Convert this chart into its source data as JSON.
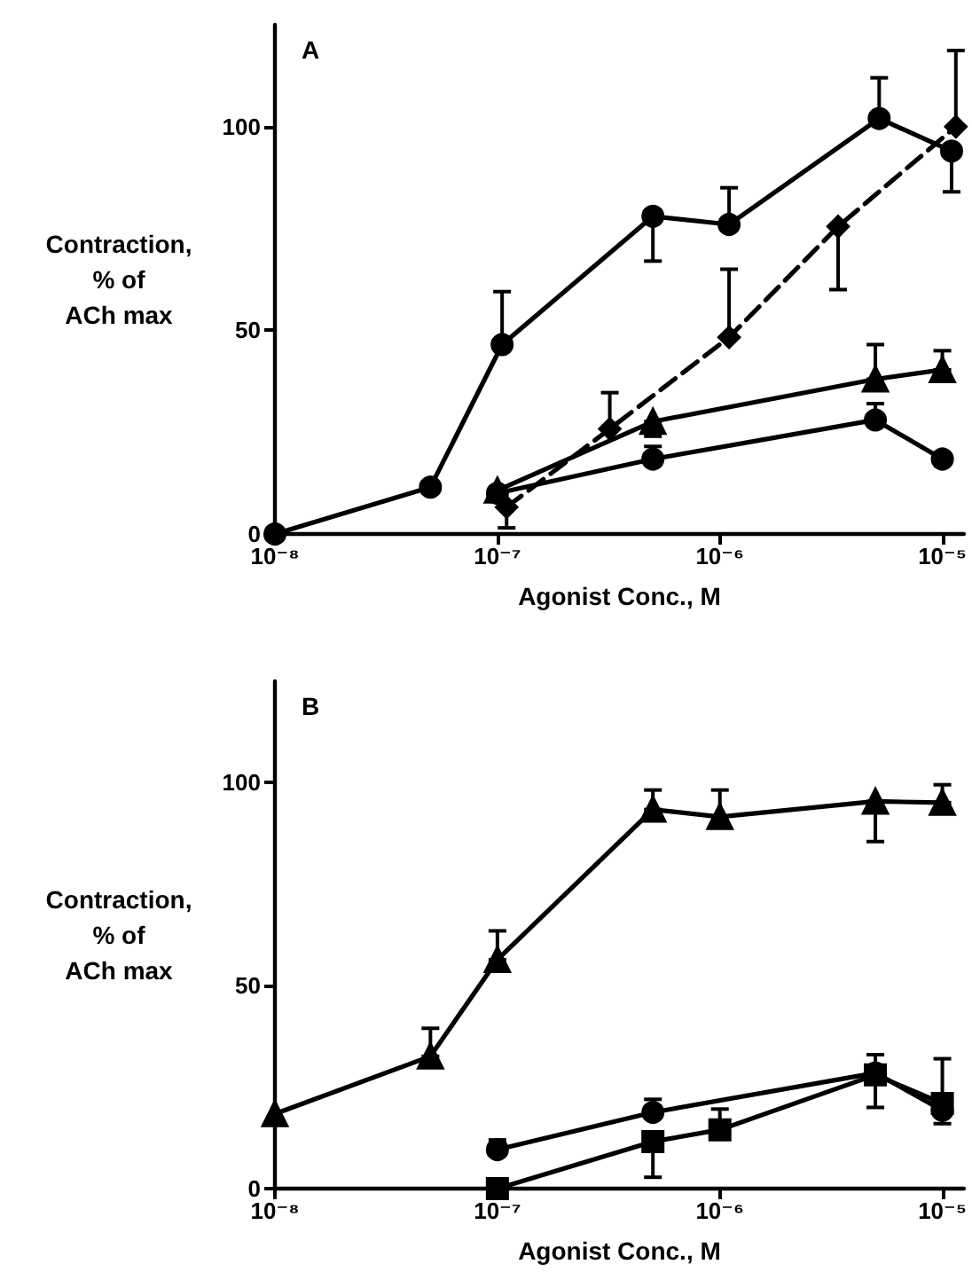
{
  "chart_data": [
    {
      "type": "line",
      "title": "A",
      "xlabel": "Agonist Conc., M",
      "ylabel": "Contraction,\n% of\nACh max",
      "log": "x",
      "xlim": [
        1e-08,
        1.25e-05
      ],
      "xticks": [
        {
          "value": 1e-08,
          "label": "10⁻⁸"
        },
        {
          "value": 1e-07,
          "label": "10⁻⁷"
        },
        {
          "value": 1e-06,
          "label": "10⁻⁶"
        },
        {
          "value": 1e-05,
          "label": "10⁻⁵"
        }
      ],
      "ylim": [
        0,
        125
      ],
      "yticks": [
        0,
        50,
        100
      ],
      "series": [
        {
          "color": "#000000",
          "marker": "circle",
          "line_style": "solid",
          "x": [
            1e-08,
            5e-08,
            1.05e-07,
            5e-07,
            1.1e-06,
            5.2e-06,
            1.1e-05
          ],
          "values": [
            0,
            11.5,
            46.5,
            78,
            76,
            102,
            94
          ],
          "errors": [
            null,
            null,
            [
              46.5,
              59.5
            ],
            [
              67,
              78
            ],
            [
              76,
              85
            ],
            [
              102,
              112
            ],
            [
              84,
              94
            ]
          ]
        },
        {
          "color": "#000000",
          "marker": "diamond",
          "line_style": "dashed",
          "x": [
            1.1e-07,
            3.2e-07,
            1.1e-06,
            3.4e-06,
            1.15e-05
          ],
          "values": [
            6.6,
            25.8,
            48.3,
            75.5,
            100
          ],
          "errors": [
            [
              1.5,
              6.6
            ],
            [
              25.8,
              34.7
            ],
            [
              48.3,
              65
            ],
            [
              60,
              75.5
            ],
            [
              100,
              118.7
            ]
          ]
        },
        {
          "color": "#000000",
          "marker": "triangle",
          "line_style": "solid",
          "x": [
            1e-07,
            5e-07,
            5e-06,
            1e-05
          ],
          "values": [
            10.7,
            27.6,
            38,
            40.3
          ],
          "errors": [
            null,
            [
              24,
              27.6
            ],
            [
              38,
              46.5
            ],
            [
              40.3,
              45
            ]
          ]
        },
        {
          "color": "#000000",
          "marker": "circle",
          "line_style": "solid",
          "x": [
            1e-07,
            5e-07,
            5e-06,
            1e-05
          ],
          "values": [
            10,
            18.4,
            28,
            18.4
          ],
          "errors": [
            null,
            [
              18.4,
              21.5
            ],
            [
              28,
              32
            ],
            null
          ]
        }
      ]
    },
    {
      "type": "line",
      "title": "B",
      "xlabel": "Agonist Conc., M",
      "ylabel": "Contraction,\n% of\nACh max",
      "log": "x",
      "xlim": [
        1e-08,
        1.25e-05
      ],
      "xticks": [
        {
          "value": 1e-08,
          "label": "10⁻⁸"
        },
        {
          "value": 1e-07,
          "label": "10⁻⁷"
        },
        {
          "value": 1e-06,
          "label": "10⁻⁶"
        },
        {
          "value": 1e-05,
          "label": "10⁻⁵"
        }
      ],
      "ylim": [
        0,
        125
      ],
      "yticks": [
        0,
        50,
        100
      ],
      "series": [
        {
          "color": "#000000",
          "marker": "triangle",
          "line_style": "solid",
          "x": [
            1e-08,
            5e-08,
            1e-07,
            5e-07,
            1e-06,
            5e-06,
            1e-05
          ],
          "values": [
            18.4,
            32.6,
            56.4,
            93.4,
            91.6,
            95.4,
            95.1
          ],
          "errors": [
            null,
            [
              32.6,
              39.5
            ],
            [
              56.4,
              63.5
            ],
            [
              93.4,
              98.2
            ],
            [
              91.6,
              98.2
            ],
            [
              85.5,
              95.4
            ],
            [
              95.1,
              99.5
            ]
          ]
        },
        {
          "color": "#000000",
          "marker": "circle",
          "line_style": "solid",
          "x": [
            1e-07,
            5e-07,
            5e-06,
            1e-05
          ],
          "values": [
            9.6,
            18.8,
            28.5,
            19.3
          ],
          "errors": [
            [
              9.6,
              12
            ],
            [
              18.8,
              22
            ],
            [
              28.5,
              33
            ],
            [
              16,
              19.3
            ]
          ]
        },
        {
          "color": "#000000",
          "marker": "square",
          "line_style": "solid",
          "x": [
            1e-07,
            5e-07,
            1e-06,
            5e-06,
            1e-05
          ],
          "values": [
            0,
            11.6,
            14.5,
            28,
            21
          ],
          "errors": [
            null,
            [
              2.8,
              11.6
            ],
            [
              14.5,
              19.6
            ],
            [
              20,
              28
            ],
            [
              21,
              32
            ]
          ]
        }
      ]
    }
  ]
}
